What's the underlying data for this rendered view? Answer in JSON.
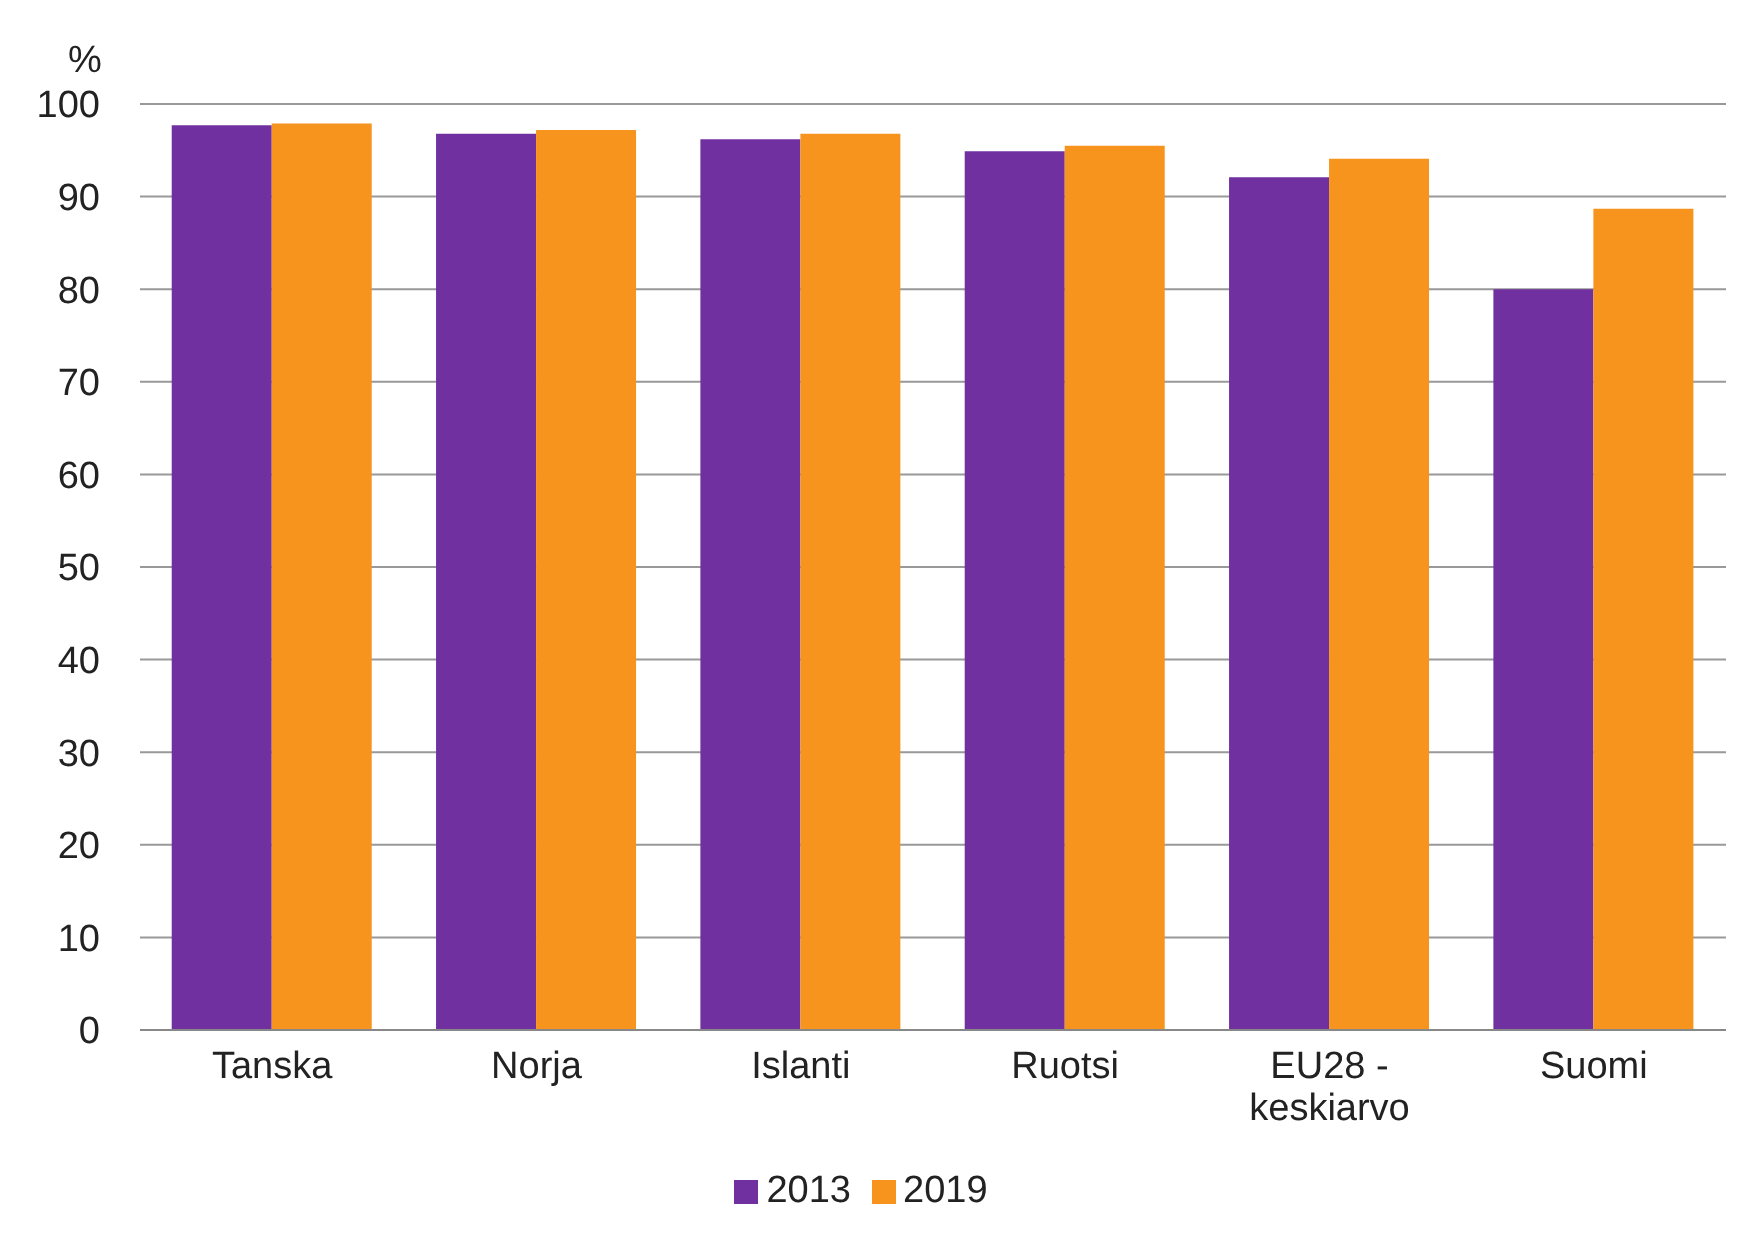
{
  "chart_data": {
    "type": "bar",
    "ylabel": "%",
    "categories": [
      "Tanska",
      "Norja",
      "Islanti",
      "Ruotsi",
      "EU28 - keskiarvo",
      "Suomi"
    ],
    "series": [
      {
        "name": "2013",
        "color": "#7030a0",
        "values": [
          97.7,
          96.8,
          96.2,
          94.9,
          92.1,
          80.0
        ]
      },
      {
        "name": "2019",
        "color": "#f7941d",
        "values": [
          97.9,
          97.2,
          96.8,
          95.5,
          94.1,
          88.7
        ]
      }
    ],
    "ylim": [
      0,
      100
    ],
    "yticks": [
      0,
      10,
      20,
      30,
      40,
      50,
      60,
      70,
      80,
      90,
      100
    ],
    "grid": "y",
    "legend": "bottom"
  }
}
